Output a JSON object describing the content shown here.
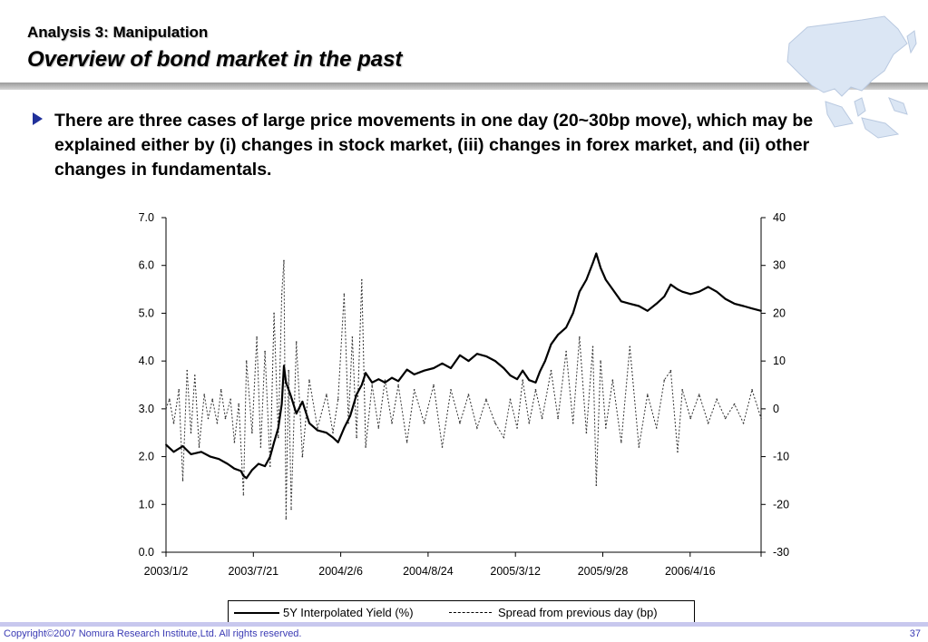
{
  "header": {
    "subtitle": "Analysis 3: Manipulation",
    "title": "Overview of bond market in the past"
  },
  "bullet": {
    "text": "There are three cases of large price movements in one day (20~30bp move), which may be explained either by (i) changes in stock market, (iii) changes in forex market, and (ii) other changes in fundamentals."
  },
  "colors": {
    "bullet": "#20309a",
    "footer_text": "#3a3ab4",
    "footer_bar": "#c8c8ee",
    "map": "#dbe6f4"
  },
  "icons": {
    "map": "asia-map-icon",
    "bullet": "triangle-bullet-icon"
  },
  "chart_data": {
    "type": "line",
    "x_tick_labels": [
      "2003/1/2",
      "2003/7/21",
      "2004/2/6",
      "2004/8/24",
      "2005/3/12",
      "2005/9/28",
      "2006/4/16"
    ],
    "x_range": [
      "2003-01-02",
      "2006-10-16"
    ],
    "ylim_left": [
      0,
      7
    ],
    "yticks_left": [
      "0.0",
      "1.0",
      "2.0",
      "3.0",
      "4.0",
      "5.0",
      "6.0",
      "7.0"
    ],
    "ylim_right": [
      -30,
      40
    ],
    "yticks_right": [
      "-30",
      "-20",
      "-10",
      "0",
      "10",
      "20",
      "30",
      "40"
    ],
    "grid": false,
    "legend_position": "bottom",
    "series": [
      {
        "name": "5Y Interpolated Yield (%)",
        "axis": "left",
        "style": "solid",
        "points": [
          [
            "2003-01-02",
            2.25
          ],
          [
            "2003-01-20",
            2.1
          ],
          [
            "2003-02-10",
            2.22
          ],
          [
            "2003-03-01",
            2.05
          ],
          [
            "2003-03-25",
            2.1
          ],
          [
            "2003-04-15",
            2.0
          ],
          [
            "2003-05-05",
            1.95
          ],
          [
            "2003-05-25",
            1.85
          ],
          [
            "2003-06-10",
            1.75
          ],
          [
            "2003-06-25",
            1.7
          ],
          [
            "2003-07-01",
            1.6
          ],
          [
            "2003-07-08",
            1.55
          ],
          [
            "2003-07-21",
            1.72
          ],
          [
            "2003-08-05",
            1.85
          ],
          [
            "2003-08-20",
            1.8
          ],
          [
            "2003-09-01",
            2.0
          ],
          [
            "2003-09-10",
            2.3
          ],
          [
            "2003-09-20",
            2.6
          ],
          [
            "2003-09-28",
            3.1
          ],
          [
            "2003-10-03",
            3.9
          ],
          [
            "2003-10-08",
            3.55
          ],
          [
            "2003-10-18",
            3.3
          ],
          [
            "2003-11-01",
            2.9
          ],
          [
            "2003-11-15",
            3.15
          ],
          [
            "2003-12-01",
            2.7
          ],
          [
            "2003-12-20",
            2.55
          ],
          [
            "2004-01-10",
            2.5
          ],
          [
            "2004-01-25",
            2.4
          ],
          [
            "2004-02-06",
            2.3
          ],
          [
            "2004-02-20",
            2.6
          ],
          [
            "2004-03-05",
            2.85
          ],
          [
            "2004-03-20",
            3.3
          ],
          [
            "2004-04-01",
            3.5
          ],
          [
            "2004-04-10",
            3.75
          ],
          [
            "2004-04-25",
            3.55
          ],
          [
            "2004-05-10",
            3.62
          ],
          [
            "2004-05-25",
            3.55
          ],
          [
            "2004-06-10",
            3.65
          ],
          [
            "2004-06-25",
            3.58
          ],
          [
            "2004-07-15",
            3.82
          ],
          [
            "2004-08-01",
            3.72
          ],
          [
            "2004-08-24",
            3.8
          ],
          [
            "2004-09-15",
            3.85
          ],
          [
            "2004-10-05",
            3.95
          ],
          [
            "2004-10-25",
            3.85
          ],
          [
            "2004-11-15",
            4.12
          ],
          [
            "2004-12-05",
            4.0
          ],
          [
            "2004-12-25",
            4.15
          ],
          [
            "2005-01-15",
            4.1
          ],
          [
            "2005-02-05",
            4.0
          ],
          [
            "2005-02-25",
            3.85
          ],
          [
            "2005-03-12",
            3.7
          ],
          [
            "2005-03-28",
            3.62
          ],
          [
            "2005-04-10",
            3.8
          ],
          [
            "2005-04-25",
            3.6
          ],
          [
            "2005-05-10",
            3.55
          ],
          [
            "2005-05-20",
            3.78
          ],
          [
            "2005-06-01",
            4.0
          ],
          [
            "2005-06-15",
            4.35
          ],
          [
            "2005-07-01",
            4.55
          ],
          [
            "2005-07-20",
            4.7
          ],
          [
            "2005-08-05",
            5.0
          ],
          [
            "2005-08-20",
            5.45
          ],
          [
            "2005-09-05",
            5.7
          ],
          [
            "2005-09-20",
            6.05
          ],
          [
            "2005-09-28",
            6.25
          ],
          [
            "2005-10-08",
            5.95
          ],
          [
            "2005-10-20",
            5.7
          ],
          [
            "2005-11-05",
            5.5
          ],
          [
            "2005-11-25",
            5.25
          ],
          [
            "2005-12-15",
            5.2
          ],
          [
            "2006-01-05",
            5.15
          ],
          [
            "2006-01-25",
            5.05
          ],
          [
            "2006-02-15",
            5.2
          ],
          [
            "2006-03-05",
            5.35
          ],
          [
            "2006-03-20",
            5.6
          ],
          [
            "2006-04-05",
            5.5
          ],
          [
            "2006-04-16",
            5.45
          ],
          [
            "2006-05-05",
            5.4
          ],
          [
            "2006-05-25",
            5.45
          ],
          [
            "2006-06-15",
            5.55
          ],
          [
            "2006-07-05",
            5.45
          ],
          [
            "2006-07-25",
            5.3
          ],
          [
            "2006-08-15",
            5.2
          ],
          [
            "2006-09-05",
            5.15
          ],
          [
            "2006-09-25",
            5.1
          ],
          [
            "2006-10-16",
            5.05
          ]
        ]
      },
      {
        "name": "Spread from previous day (bp)",
        "axis": "right",
        "style": "dashed",
        "points": [
          [
            "2003-01-02",
            0
          ],
          [
            "2003-01-10",
            2
          ],
          [
            "2003-01-20",
            -3
          ],
          [
            "2003-02-01",
            4
          ],
          [
            "2003-02-10",
            -15
          ],
          [
            "2003-02-20",
            8
          ],
          [
            "2003-03-01",
            -5
          ],
          [
            "2003-03-10",
            7
          ],
          [
            "2003-03-20",
            -8
          ],
          [
            "2003-04-01",
            3
          ],
          [
            "2003-04-10",
            -2
          ],
          [
            "2003-04-20",
            2
          ],
          [
            "2003-05-01",
            -3
          ],
          [
            "2003-05-10",
            4
          ],
          [
            "2003-05-20",
            -2
          ],
          [
            "2003-06-01",
            2
          ],
          [
            "2003-06-10",
            -7
          ],
          [
            "2003-06-20",
            1
          ],
          [
            "2003-07-01",
            -18
          ],
          [
            "2003-07-08",
            10
          ],
          [
            "2003-07-21",
            -5
          ],
          [
            "2003-08-01",
            15
          ],
          [
            "2003-08-10",
            -8
          ],
          [
            "2003-08-20",
            12
          ],
          [
            "2003-09-01",
            -12
          ],
          [
            "2003-09-10",
            20
          ],
          [
            "2003-09-20",
            -6
          ],
          [
            "2003-09-28",
            24
          ],
          [
            "2003-10-03",
            31
          ],
          [
            "2003-10-08",
            -23
          ],
          [
            "2003-10-14",
            8
          ],
          [
            "2003-10-20",
            -21
          ],
          [
            "2003-11-01",
            14
          ],
          [
            "2003-11-15",
            -10
          ],
          [
            "2003-12-01",
            6
          ],
          [
            "2003-12-20",
            -4
          ],
          [
            "2004-01-10",
            3
          ],
          [
            "2004-01-25",
            -5
          ],
          [
            "2004-02-06",
            2
          ],
          [
            "2004-02-20",
            24
          ],
          [
            "2004-03-01",
            -3
          ],
          [
            "2004-03-10",
            15
          ],
          [
            "2004-03-20",
            -6
          ],
          [
            "2004-04-01",
            27
          ],
          [
            "2004-04-10",
            -8
          ],
          [
            "2004-04-25",
            5
          ],
          [
            "2004-05-10",
            -4
          ],
          [
            "2004-05-25",
            6
          ],
          [
            "2004-06-10",
            -3
          ],
          [
            "2004-06-25",
            5
          ],
          [
            "2004-07-15",
            -7
          ],
          [
            "2004-08-01",
            4
          ],
          [
            "2004-08-24",
            -3
          ],
          [
            "2004-09-15",
            5
          ],
          [
            "2004-10-05",
            -8
          ],
          [
            "2004-10-25",
            4
          ],
          [
            "2004-11-15",
            -3
          ],
          [
            "2004-12-05",
            3
          ],
          [
            "2004-12-25",
            -4
          ],
          [
            "2005-01-15",
            2
          ],
          [
            "2005-02-05",
            -3
          ],
          [
            "2005-02-25",
            -6
          ],
          [
            "2005-03-12",
            2
          ],
          [
            "2005-03-28",
            -4
          ],
          [
            "2005-04-10",
            6
          ],
          [
            "2005-04-25",
            -3
          ],
          [
            "2005-05-10",
            4
          ],
          [
            "2005-05-25",
            -2
          ],
          [
            "2005-06-15",
            8
          ],
          [
            "2005-07-01",
            -2
          ],
          [
            "2005-07-20",
            12
          ],
          [
            "2005-08-05",
            -3
          ],
          [
            "2005-08-20",
            15
          ],
          [
            "2005-09-05",
            -5
          ],
          [
            "2005-09-20",
            13
          ],
          [
            "2005-09-28",
            -16
          ],
          [
            "2005-10-08",
            10
          ],
          [
            "2005-10-20",
            -4
          ],
          [
            "2005-11-05",
            6
          ],
          [
            "2005-11-25",
            -7
          ],
          [
            "2005-12-15",
            13
          ],
          [
            "2006-01-05",
            -8
          ],
          [
            "2006-01-25",
            3
          ],
          [
            "2006-02-15",
            -4
          ],
          [
            "2006-03-05",
            6
          ],
          [
            "2006-03-20",
            8
          ],
          [
            "2006-04-05",
            -9
          ],
          [
            "2006-04-16",
            4
          ],
          [
            "2006-05-05",
            -2
          ],
          [
            "2006-05-25",
            3
          ],
          [
            "2006-06-15",
            -3
          ],
          [
            "2006-07-05",
            2
          ],
          [
            "2006-07-25",
            -2
          ],
          [
            "2006-08-15",
            1
          ],
          [
            "2006-09-05",
            -3
          ],
          [
            "2006-09-25",
            4
          ],
          [
            "2006-10-16",
            -2
          ]
        ]
      }
    ]
  },
  "footer": {
    "copyright": "Copyright©2007 Nomura Research Institute,Ltd. All rights reserved.",
    "page_number": "37"
  }
}
